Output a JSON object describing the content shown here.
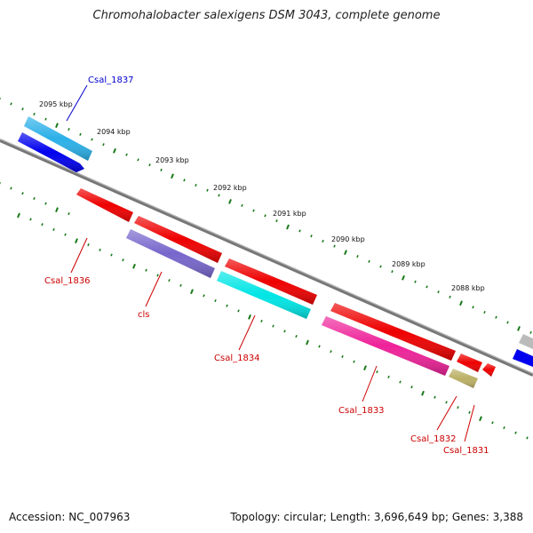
{
  "title": "Chromohalobacter salexigens DSM 3043, complete genome",
  "footer": {
    "accession": "Accession: NC_007963",
    "summary": "Topology: circular; Length: 3,696,649 bp; Genes: 3,388"
  },
  "colors": {
    "backbone": "#888888",
    "tick": "#1a7a1a",
    "reverse_label": "#cc0000",
    "forward_label": "#0000cc"
  },
  "scale_labels": [
    "2095 kbp",
    "2094 kbp",
    "2093 kbp",
    "2092 kbp",
    "2091 kbp",
    "2090 kbp",
    "2089 kbp",
    "2088 kbp"
  ],
  "genes": [
    {
      "id": "g_forward_blue",
      "label": "",
      "color": "#0000ee"
    },
    {
      "id": "g_forward_cyan",
      "label": "Csal_1837",
      "color": "#2bb0e8"
    },
    {
      "id": "g_rev_1",
      "label": "",
      "color": "#ee0000"
    },
    {
      "id": "g_rev_2",
      "label": "",
      "color": "#ee0000"
    },
    {
      "id": "g_rev_3",
      "label": "",
      "color": "#ee0000"
    },
    {
      "id": "g_rev_4",
      "label": "",
      "color": "#ee0000"
    },
    {
      "id": "g_rev_5",
      "label": "",
      "color": "#ee0000"
    },
    {
      "id": "g_rev_6",
      "label": "",
      "color": "#ee0000"
    },
    {
      "id": "g_purple",
      "label": "cls",
      "color": "#7766cc"
    },
    {
      "id": "g_cyan",
      "label": "Csal_1834",
      "color": "#00e5e5"
    },
    {
      "id": "g_pink",
      "label": "Csal_1833",
      "color": "#ee2299"
    },
    {
      "id": "g_olive",
      "label": "Csal_1832",
      "color": "#bbb066"
    },
    {
      "id": "g_gray_edge",
      "label": "",
      "color": "#bbbbbb"
    },
    {
      "id": "g_blue_edge",
      "label": "",
      "color": "#0000ee"
    }
  ],
  "orphan_labels": [
    "Csal_1836",
    "Csal_1831"
  ]
}
